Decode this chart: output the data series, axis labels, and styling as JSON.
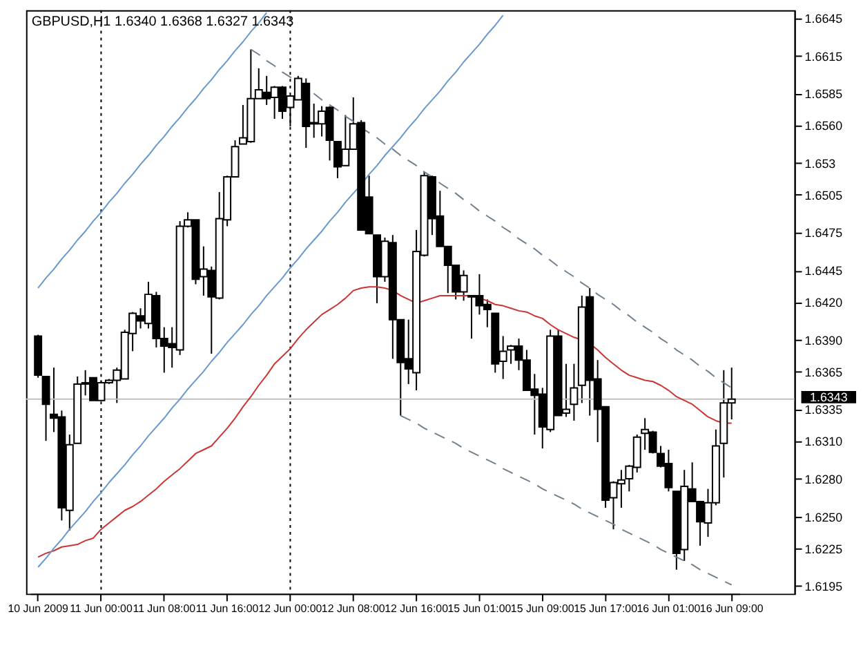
{
  "chart_data": {
    "type": "candlestick",
    "title": "GBPUSD,H1 1.6340 1.6368 1.6327 1.6343",
    "categories": [
      "10 Jun 2009",
      null,
      null,
      null,
      null,
      null,
      null,
      null,
      "11 Jun 00:00",
      null,
      null,
      null,
      null,
      null,
      null,
      null,
      "11 Jun 08:00",
      null,
      null,
      null,
      null,
      null,
      null,
      null,
      "11 Jun 16:00",
      null,
      null,
      null,
      null,
      null,
      null,
      null,
      "12 Jun 00:00",
      null,
      null,
      null,
      null,
      null,
      null,
      null,
      "12 Jun 08:00",
      null,
      null,
      null,
      null,
      null,
      null,
      null,
      "12 Jun 16:00",
      null,
      null,
      null,
      null,
      null,
      null,
      null,
      "15 Jun 01:00",
      null,
      null,
      null,
      null,
      null,
      null,
      null,
      "15 Jun 09:00",
      null,
      null,
      null,
      null,
      null,
      null,
      null,
      "15 Jun 17:00",
      null,
      null,
      null,
      null,
      null,
      null,
      null,
      "16 Jun 01:00",
      null,
      null,
      null,
      null,
      null,
      null,
      null,
      "16 Jun 09:00"
    ],
    "ohlc": [
      [
        1.6393,
        1.6394,
        1.636,
        1.6362
      ],
      [
        1.6361,
        1.6361,
        1.631,
        1.6339
      ],
      [
        1.6331,
        1.6368,
        1.6317,
        1.6328
      ],
      [
        1.6329,
        1.6334,
        1.6247,
        1.6257
      ],
      [
        1.6255,
        1.6315,
        1.6239,
        1.6307
      ],
      [
        1.6308,
        1.6361,
        1.6308,
        1.6355
      ],
      [
        1.6355,
        1.6366,
        1.6346,
        1.6356
      ],
      [
        1.636,
        1.636,
        1.6342,
        1.6342
      ],
      [
        1.6342,
        1.6358,
        1.6342,
        1.6356
      ],
      [
        1.6356,
        1.6359,
        1.6355,
        1.6358
      ],
      [
        1.6358,
        1.6368,
        1.634,
        1.6366
      ],
      [
        1.6359,
        1.6398,
        1.6359,
        1.6396
      ],
      [
        1.6395,
        1.6412,
        1.6381,
        1.6411
      ],
      [
        1.6409,
        1.6415,
        1.6399,
        1.6405
      ],
      [
        1.6403,
        1.6436,
        1.6399,
        1.6426
      ],
      [
        1.6425,
        1.6428,
        1.6384,
        1.6391
      ],
      [
        1.6391,
        1.64,
        1.6364,
        1.6385
      ],
      [
        1.6387,
        1.64,
        1.6368,
        1.6384
      ],
      [
        1.6382,
        1.6484,
        1.6378,
        1.648
      ],
      [
        1.648,
        1.6491,
        1.6479,
        1.6485
      ],
      [
        1.6485,
        1.6485,
        1.6434,
        1.6438
      ],
      [
        1.644,
        1.6464,
        1.6425,
        1.6446
      ],
      [
        1.6445,
        1.6448,
        1.6379,
        1.6424
      ],
      [
        1.6423,
        1.6507,
        1.6422,
        1.6486
      ],
      [
        1.6485,
        1.652,
        1.648,
        1.6519
      ],
      [
        1.6519,
        1.6548,
        1.6519,
        1.6543
      ],
      [
        1.6545,
        1.6576,
        1.6545,
        1.655
      ],
      [
        1.6547,
        1.662,
        1.6546,
        1.6581
      ],
      [
        1.6581,
        1.6605,
        1.6581,
        1.6588
      ],
      [
        1.6586,
        1.6599,
        1.6576,
        1.6581
      ],
      [
        1.6582,
        1.6591,
        1.6565,
        1.659
      ],
      [
        1.659,
        1.6591,
        1.6565,
        1.6571
      ],
      [
        1.6574,
        1.6583,
        1.6559,
        1.6583
      ],
      [
        1.658,
        1.6599,
        1.658,
        1.6597
      ],
      [
        1.6593,
        1.6597,
        1.6542,
        1.6559
      ],
      [
        1.6562,
        1.6577,
        1.655,
        1.6561
      ],
      [
        1.6561,
        1.6575,
        1.6551,
        1.6571
      ],
      [
        1.6574,
        1.6575,
        1.6532,
        1.6548
      ],
      [
        1.6547,
        1.6547,
        1.6518,
        1.6527
      ],
      [
        1.6528,
        1.6568,
        1.6528,
        1.6541
      ],
      [
        1.6541,
        1.6582,
        1.6541,
        1.6561
      ],
      [
        1.6562,
        1.6564,
        1.6477,
        1.6477
      ],
      [
        1.6503,
        1.652,
        1.6474,
        1.6474
      ],
      [
        1.6473,
        1.6473,
        1.6419,
        1.644
      ],
      [
        1.644,
        1.6471,
        1.6436,
        1.6468
      ],
      [
        1.6467,
        1.6473,
        1.6375,
        1.6406
      ],
      [
        1.6406,
        1.6406,
        1.633,
        1.6372
      ],
      [
        1.6375,
        1.6406,
        1.6355,
        1.6367
      ],
      [
        1.6364,
        1.6477,
        1.635,
        1.646
      ],
      [
        1.6457,
        1.6523,
        1.6456,
        1.652
      ],
      [
        1.6519,
        1.652,
        1.6473,
        1.6486
      ],
      [
        1.6488,
        1.6508,
        1.6464,
        1.6464
      ],
      [
        1.6464,
        1.6464,
        1.6427,
        1.6449
      ],
      [
        1.6449,
        1.6449,
        1.6422,
        1.6428
      ],
      [
        1.6428,
        1.6445,
        1.6421,
        1.6441
      ],
      [
        1.6425,
        1.6425,
        1.6391,
        1.6424
      ],
      [
        1.6425,
        1.6442,
        1.641,
        1.6417
      ],
      [
        1.6418,
        1.6422,
        1.64,
        1.6414
      ],
      [
        1.6411,
        1.6411,
        1.6364,
        1.6371
      ],
      [
        1.6373,
        1.6393,
        1.6359,
        1.6381
      ],
      [
        1.6382,
        1.6386,
        1.6371,
        1.6385
      ],
      [
        1.6385,
        1.6391,
        1.6366,
        1.6374
      ],
      [
        1.6374,
        1.6382,
        1.635,
        1.635
      ],
      [
        1.6351,
        1.6363,
        1.6315,
        1.6346
      ],
      [
        1.6347,
        1.6352,
        1.6304,
        1.6321
      ],
      [
        1.6319,
        1.6398,
        1.6317,
        1.6393
      ],
      [
        1.6393,
        1.6398,
        1.633,
        1.633
      ],
      [
        1.6332,
        1.6371,
        1.6329,
        1.6335
      ],
      [
        1.6339,
        1.6371,
        1.6326,
        1.6352
      ],
      [
        1.6354,
        1.6425,
        1.634,
        1.6416
      ],
      [
        1.6424,
        1.6431,
        1.633,
        1.6358
      ],
      [
        1.6359,
        1.6374,
        1.6309,
        1.6335
      ],
      [
        1.6337,
        1.6337,
        1.6257,
        1.6263
      ],
      [
        1.6265,
        1.6278,
        1.624,
        1.6277
      ],
      [
        1.6276,
        1.6287,
        1.6257,
        1.6279
      ],
      [
        1.628,
        1.6291,
        1.627,
        1.629
      ],
      [
        1.6289,
        1.6315,
        1.6285,
        1.6313
      ],
      [
        1.6316,
        1.6328,
        1.6303,
        1.6319
      ],
      [
        1.6317,
        1.6318,
        1.63,
        1.6301
      ],
      [
        1.63,
        1.6306,
        1.6289,
        1.629
      ],
      [
        1.6292,
        1.6303,
        1.627,
        1.6273
      ],
      [
        1.627,
        1.627,
        1.6208,
        1.6221
      ],
      [
        1.6224,
        1.6287,
        1.6215,
        1.6274
      ],
      [
        1.6272,
        1.6293,
        1.6262,
        1.6262
      ],
      [
        1.6262,
        1.6262,
        1.6227,
        1.6246
      ],
      [
        1.6245,
        1.6272,
        1.6234,
        1.6261
      ],
      [
        1.6261,
        1.6319,
        1.6259,
        1.6306
      ],
      [
        1.6308,
        1.6366,
        1.6281,
        1.634
      ],
      [
        1.634,
        1.6368,
        1.6327,
        1.6343
      ]
    ],
    "series": [
      {
        "type": "line",
        "color": "#cc3333",
        "line_style": "solid",
        "values": [
          1.6218,
          1.6221,
          1.6223,
          1.6226,
          1.6227,
          1.6228,
          1.6231,
          1.6233,
          1.624,
          1.6245,
          1.625,
          1.6255,
          1.6258,
          1.6262,
          1.6267,
          1.6272,
          1.6278,
          1.6283,
          1.6288,
          1.6294,
          1.63,
          1.6303,
          1.6306,
          1.6313,
          1.632,
          1.6328,
          1.6337,
          1.6345,
          1.6354,
          1.6362,
          1.6371,
          1.6377,
          1.6383,
          1.6391,
          1.6398,
          1.6404,
          1.641,
          1.6414,
          1.6418,
          1.6423,
          1.6429,
          1.6431,
          1.6432,
          1.6432,
          1.6431,
          1.6429,
          1.6425,
          1.6422,
          1.6419,
          1.6421,
          1.6423,
          1.6425,
          1.6425,
          1.6425,
          1.6425,
          1.6425,
          1.6423,
          1.6421,
          1.6418,
          1.6417,
          1.6415,
          1.6413,
          1.6412,
          1.6409,
          1.6407,
          1.6402,
          1.6398,
          1.6395,
          1.6392,
          1.639,
          1.6387,
          1.6382,
          1.6376,
          1.6371,
          1.6366,
          1.6362,
          1.636,
          1.6358,
          1.6357,
          1.6354,
          1.635,
          1.6345,
          1.6342,
          1.6339,
          1.6334,
          1.6329,
          1.6326,
          1.6324,
          1.6324
        ]
      },
      {
        "type": "line",
        "color": "#6699cc",
        "line_style": "solid",
        "values": [
          1.6431,
          1.6439,
          1.6446,
          1.6454,
          1.6461,
          1.6469,
          1.6476,
          1.6484,
          1.6491,
          1.6499,
          1.6506,
          1.6514,
          1.6521,
          1.6529,
          1.6536,
          1.6544,
          1.6551,
          1.6559,
          1.6566,
          1.6574,
          1.6581,
          1.6589,
          1.6596,
          1.6604,
          1.6611,
          1.6619,
          1.6626,
          1.6634,
          1.6641,
          1.6649,
          null,
          null,
          null,
          null,
          null,
          null,
          null,
          null,
          null,
          null,
          null,
          null,
          null,
          null,
          null,
          null,
          null,
          null,
          null,
          null,
          null,
          null,
          null,
          null,
          null,
          null,
          null,
          null,
          null,
          null,
          null,
          null,
          null,
          null,
          null,
          null,
          null,
          null,
          null,
          null,
          null,
          null,
          null,
          null,
          null,
          null,
          null,
          null,
          null,
          null,
          null,
          null,
          null,
          null,
          null,
          null,
          null,
          null,
          null
        ]
      },
      {
        "type": "line",
        "color": "#6699cc",
        "line_style": "solid",
        "values": [
          1.621,
          1.6217,
          1.6225,
          1.6232,
          1.624,
          1.6247,
          1.6254,
          1.6262,
          1.6269,
          1.6277,
          1.6284,
          1.6291,
          1.6299,
          1.6306,
          1.6314,
          1.6321,
          1.6328,
          1.6336,
          1.6343,
          1.6351,
          1.6358,
          1.6365,
          1.6373,
          1.638,
          1.6388,
          1.6395,
          1.6402,
          1.641,
          1.6417,
          1.6425,
          1.6432,
          1.6439,
          1.6447,
          1.6454,
          1.6462,
          1.6469,
          1.6476,
          1.6484,
          1.6491,
          1.6499,
          1.6506,
          1.6513,
          1.6521,
          1.6528,
          1.6536,
          1.6543,
          1.655,
          1.6558,
          1.6565,
          1.6573,
          1.658,
          1.6587,
          1.6595,
          1.6602,
          1.661,
          1.6617,
          1.6624,
          1.6632,
          1.6639,
          1.6647,
          null,
          null,
          null,
          null,
          null,
          null,
          null,
          null,
          null,
          null,
          null,
          null,
          null,
          null,
          null,
          null,
          null,
          null,
          null,
          null,
          null,
          null,
          null,
          null,
          null,
          null,
          null,
          null,
          null
        ]
      },
      {
        "type": "line",
        "color": "#708090",
        "line_style": "dashed",
        "values": [
          null,
          null,
          null,
          null,
          null,
          null,
          null,
          null,
          null,
          null,
          null,
          null,
          null,
          null,
          null,
          null,
          null,
          null,
          null,
          null,
          null,
          null,
          null,
          null,
          null,
          null,
          null,
          1.662,
          1.6616,
          1.6611,
          1.6607,
          1.6602,
          1.6598,
          1.6594,
          1.6589,
          1.6585,
          1.658,
          1.6576,
          1.6572,
          1.6567,
          1.6563,
          1.6558,
          1.6554,
          1.655,
          1.6545,
          1.6541,
          1.6536,
          1.6532,
          1.6528,
          1.6523,
          1.6519,
          1.6514,
          1.651,
          1.6506,
          1.6501,
          1.6497,
          1.6492,
          1.6488,
          1.6484,
          1.6479,
          1.6475,
          1.647,
          1.6466,
          1.6462,
          1.6457,
          1.6453,
          1.6448,
          1.6444,
          1.644,
          1.6435,
          1.6431,
          1.6426,
          1.6422,
          1.6418,
          1.6413,
          1.6409,
          1.6404,
          1.64,
          1.6396,
          1.6391,
          1.6387,
          1.6382,
          1.6378,
          1.6374,
          1.6369,
          1.6365,
          1.636,
          1.6356,
          1.6352
        ]
      },
      {
        "type": "line",
        "color": "#708090",
        "line_style": "dashed",
        "values": [
          null,
          null,
          null,
          null,
          null,
          null,
          null,
          null,
          null,
          null,
          null,
          null,
          null,
          null,
          null,
          null,
          null,
          null,
          null,
          null,
          null,
          null,
          null,
          null,
          null,
          null,
          null,
          null,
          null,
          null,
          null,
          null,
          null,
          null,
          null,
          null,
          null,
          null,
          null,
          null,
          null,
          null,
          null,
          null,
          null,
          null,
          1.633,
          1.6327,
          1.6324,
          1.632,
          1.6317,
          1.6314,
          1.6311,
          1.6308,
          1.6304,
          1.6301,
          1.6298,
          1.6295,
          1.6292,
          1.6288,
          1.6285,
          1.6282,
          1.6279,
          1.6276,
          1.6272,
          1.6269,
          1.6266,
          1.6263,
          1.626,
          1.6256,
          1.6253,
          1.625,
          1.6247,
          1.6244,
          1.624,
          1.6237,
          1.6234,
          1.6231,
          1.6228,
          1.6224,
          1.6221,
          1.6218,
          1.6215,
          1.6212,
          1.6208,
          1.6205,
          1.6202,
          1.6199,
          1.6196
        ]
      }
    ],
    "ylim": [
      1.6189,
      1.6651
    ],
    "yticks": [
      1.6645,
      1.6615,
      1.6585,
      {
        "value": 1.656,
        "label": "1.6560"
      },
      1.653,
      1.6505,
      1.6475,
      1.6445,
      {
        "value": 1.642,
        "label": "1.6420"
      },
      {
        "value": 1.639,
        "label": "1.6390"
      },
      1.6365,
      1.6335,
      {
        "value": 1.631,
        "label": "1.6310"
      },
      {
        "value": 1.628,
        "label": "1.6280"
      },
      {
        "value": 1.625,
        "label": "1.6250"
      },
      1.6225,
      1.6195
    ],
    "ref_lines": [
      {
        "axis": "y",
        "value": 1.6343,
        "label": "1.6343",
        "color": "#c0c0c0",
        "line_style": "solid"
      },
      {
        "axis": "x",
        "value": "11 Jun 00:00",
        "color": "#000000",
        "line_style": "dotted"
      },
      {
        "axis": "x",
        "value": "12 Jun 00:00",
        "color": "#000000",
        "line_style": "dotted"
      }
    ],
    "grid": false
  }
}
